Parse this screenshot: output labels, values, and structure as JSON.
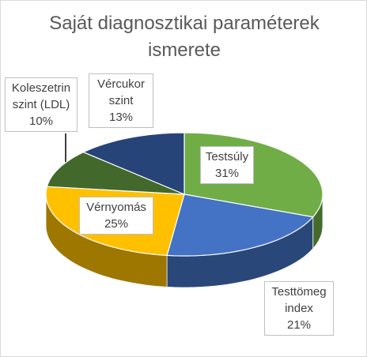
{
  "chart_data": {
    "type": "pie3d",
    "title": "Saját diagnosztikai paraméterek ismerete",
    "categories": [
      "Testsúly",
      "Testtömeg index",
      "Vérnyomás",
      "Koleszetrin szint (LDL)",
      "Vércukor szint"
    ],
    "values": [
      31,
      21,
      25,
      10,
      13
    ],
    "value_labels": [
      "31%",
      "21%",
      "25%",
      "10%",
      "13%"
    ],
    "colors": [
      "#70ad47",
      "#4472c4",
      "#ffc000",
      "#43682b",
      "#264478"
    ]
  }
}
